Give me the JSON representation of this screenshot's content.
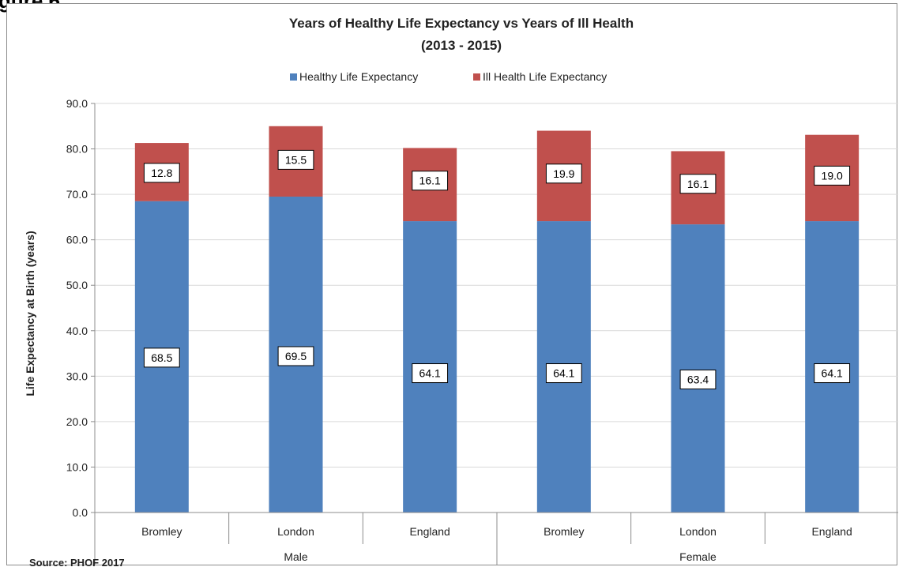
{
  "page": {
    "heading": "gure 6",
    "source": "Source: PHOF 2017"
  },
  "chart_data": {
    "type": "bar",
    "stacked": true,
    "title": [
      "Years of Healthy Life Expectancy vs Years of Ill Health",
      "(2013 - 2015)"
    ],
    "ylabel": "Life Expectancy at Birth (years)",
    "xlabel": "",
    "ylim": [
      0,
      90
    ],
    "yticks": [
      "0.0",
      "10.0",
      "20.0",
      "30.0",
      "40.0",
      "50.0",
      "60.0",
      "70.0",
      "80.0",
      "90.0"
    ],
    "grid": true,
    "legend_position": "top",
    "categories": [
      "Bromley",
      "London",
      "England",
      "Bromley",
      "London",
      "England"
    ],
    "groups": [
      {
        "label": "Male",
        "span": [
          0,
          2
        ]
      },
      {
        "label": "Female",
        "span": [
          3,
          5
        ]
      }
    ],
    "series": [
      {
        "name": "Healthy Life Expectancy",
        "color": "#4f81bd",
        "values": [
          68.5,
          69.5,
          64.1,
          64.1,
          63.4,
          64.1
        ],
        "labels": [
          "68.5",
          "69.5",
          "64.1",
          "64.1",
          "63.4",
          "64.1"
        ]
      },
      {
        "name": "Ill Health Life Expectancy",
        "color": "#c0504d",
        "values": [
          12.8,
          15.5,
          16.1,
          19.9,
          16.1,
          19.0
        ],
        "labels": [
          "12.8",
          "15.5",
          "16.1",
          "19.9",
          "16.1",
          "19.0"
        ]
      }
    ]
  }
}
